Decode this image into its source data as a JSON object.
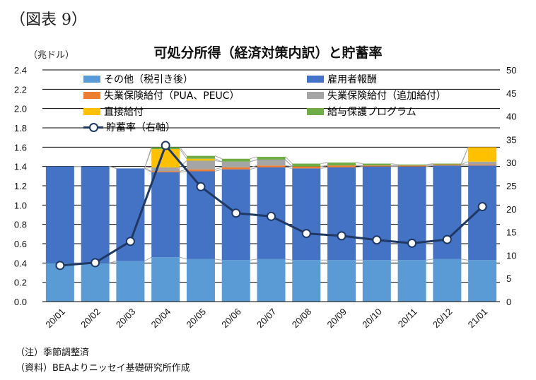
{
  "figure_label": "（図表 9）",
  "chart_data": {
    "type": "bar",
    "title": "可処分所得（経済対策内訳）と貯蓄率",
    "unit_left": "（兆ドル）",
    "categories": [
      "20/01",
      "20/02",
      "20/03",
      "20/04",
      "20/05",
      "20/06",
      "20/07",
      "20/08",
      "20/09",
      "20/10",
      "20/11",
      "20/12",
      "21/01"
    ],
    "left_axis": {
      "ylim": [
        0,
        2.4
      ],
      "ticks": [
        "0.0",
        "0.2",
        "0.4",
        "0.6",
        "0.8",
        "1.0",
        "1.2",
        "1.4",
        "1.6",
        "1.8",
        "2.0",
        "2.2",
        "2.4"
      ]
    },
    "right_axis": {
      "ylim": [
        0,
        50
      ],
      "ticks": [
        "0",
        "5",
        "10",
        "15",
        "20",
        "25",
        "30",
        "35",
        "40",
        "45",
        "50"
      ]
    },
    "series": [
      {
        "name": "その他（税引き後）",
        "color": "#5b9bd5",
        "kind": "bar",
        "values": [
          0.4,
          0.4,
          0.42,
          0.46,
          0.44,
          0.43,
          0.44,
          0.43,
          0.43,
          0.43,
          0.43,
          0.44,
          0.43
        ]
      },
      {
        "name": "雇用者報酬",
        "color": "#4472c4",
        "kind": "bar",
        "values": [
          1.0,
          1.0,
          0.96,
          0.88,
          0.91,
          0.94,
          0.95,
          0.95,
          0.96,
          0.97,
          0.97,
          0.97,
          0.98
        ]
      },
      {
        "name": "失業保険給付（PUA、PEUC）",
        "color": "#ed7d31",
        "kind": "bar",
        "values": [
          0.0,
          0.0,
          0.0,
          0.01,
          0.02,
          0.02,
          0.02,
          0.02,
          0.02,
          0.01,
          0.01,
          0.01,
          0.01
        ]
      },
      {
        "name": "失業保険給付（追加給付）",
        "color": "#a5a5a5",
        "kind": "bar",
        "values": [
          0.0,
          0.0,
          0.0,
          0.04,
          0.09,
          0.06,
          0.06,
          0.0,
          0.0,
          0.0,
          0.0,
          0.0,
          0.03
        ]
      },
      {
        "name": "直接給付",
        "color": "#ffc000",
        "kind": "bar",
        "values": [
          0.0,
          0.0,
          0.0,
          0.19,
          0.02,
          0.0,
          0.0,
          0.0,
          0.0,
          0.0,
          0.0,
          0.0,
          0.15
        ]
      },
      {
        "name": "給与保護プログラム",
        "color": "#70ad47",
        "kind": "bar",
        "values": [
          0.0,
          0.0,
          0.0,
          0.02,
          0.03,
          0.03,
          0.03,
          0.03,
          0.03,
          0.02,
          0.01,
          0.01,
          0.0
        ]
      },
      {
        "name": "貯蓄率（右軸）",
        "color": "#1f3864",
        "kind": "line",
        "axis": "right",
        "values": [
          7.8,
          8.4,
          13.0,
          33.7,
          24.8,
          19.1,
          18.4,
          14.7,
          14.2,
          13.3,
          12.6,
          13.4,
          20.5
        ]
      }
    ],
    "grid": true,
    "legend_position": "top"
  },
  "notes": [
    "（注）季節調整済",
    "（資料）BEAよりニッセイ基礎研究所作成"
  ]
}
